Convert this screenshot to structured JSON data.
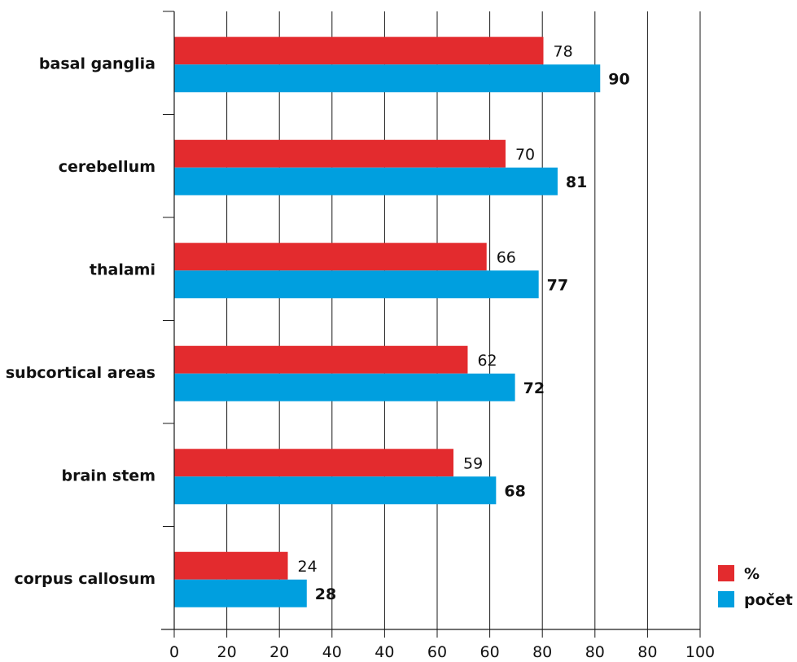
{
  "chart_data": {
    "type": "bar",
    "orientation": "horizontal",
    "categories": [
      "basal ganglia",
      "cerebellum",
      "thalami",
      "subcortical areas",
      "brain stem",
      "corpus callosum"
    ],
    "series": [
      {
        "name": "%",
        "values": [
          78,
          70,
          66,
          62,
          59,
          24
        ],
        "color": "#e32b2e"
      },
      {
        "name": "počet",
        "values": [
          90,
          81,
          77,
          72,
          68,
          28
        ],
        "color": "#009fdf"
      }
    ],
    "x_ticks": [
      "0",
      "20",
      "20",
      "40",
      "40",
      "60",
      "60",
      "80",
      "80",
      "80",
      "100"
    ],
    "xlim": [
      0,
      100
    ],
    "grid": true,
    "legend_position": "bottom-right",
    "title": "",
    "xlabel": "",
    "ylabel": ""
  }
}
